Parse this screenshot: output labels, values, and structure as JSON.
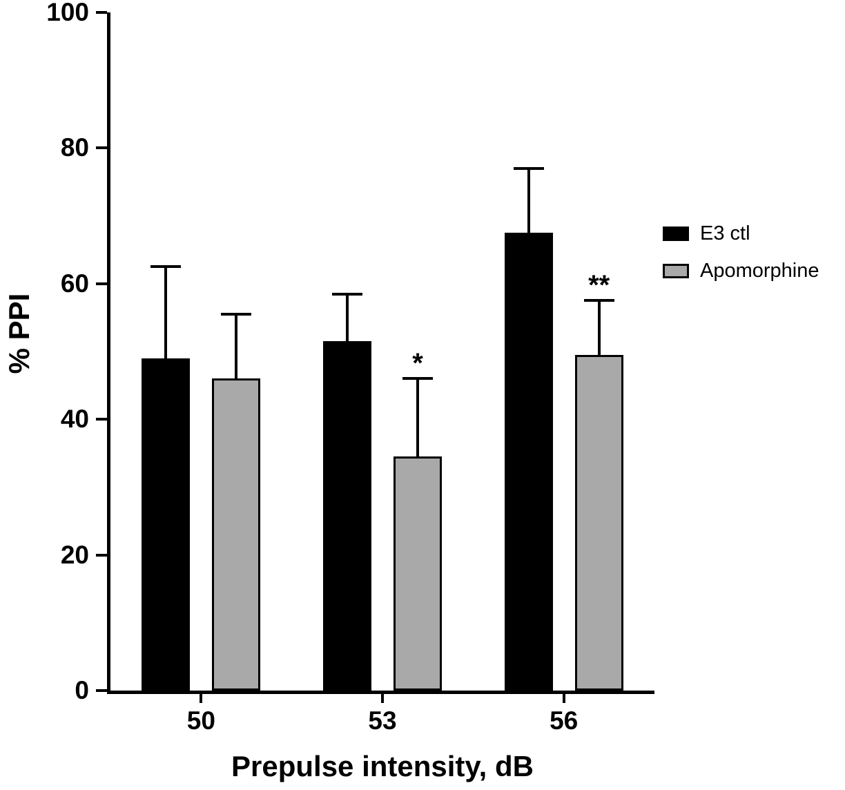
{
  "chart_data": {
    "type": "bar",
    "title": "",
    "xlabel": "Prepulse intensity, dB",
    "ylabel": "% PPI",
    "ylim": [
      0,
      100
    ],
    "yticks": [
      0,
      20,
      40,
      60,
      80,
      100
    ],
    "categories": [
      "50",
      "53",
      "56"
    ],
    "series": [
      {
        "name": "E3 ctl",
        "color": "#000000",
        "values": [
          49,
          51.5,
          67.5
        ],
        "errors": [
          13.5,
          7,
          9.5
        ],
        "annotations": [
          "",
          "",
          ""
        ]
      },
      {
        "name": "Apomorphine",
        "color": "#a9a9a9",
        "values": [
          46,
          34.5,
          49.5
        ],
        "errors": [
          9.5,
          11.5,
          8
        ],
        "annotations": [
          "",
          "*",
          "**"
        ]
      }
    ],
    "error_bars": "upper only",
    "legend_position": "right",
    "grid": false,
    "axis_color": "#000000",
    "background_color": "#ffffff"
  }
}
